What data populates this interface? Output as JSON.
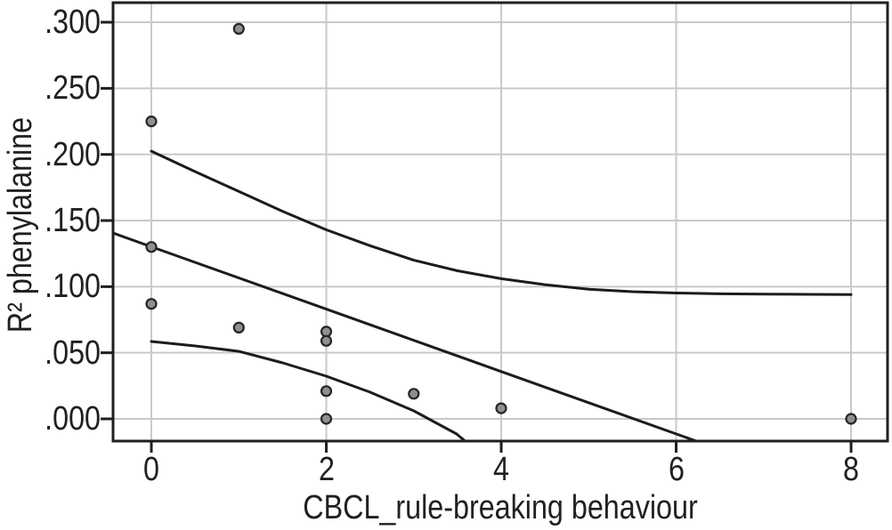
{
  "figure": {
    "background": "#ffffff"
  },
  "chart_data": {
    "type": "scatter",
    "title": "",
    "xlabel": "CBCL_rule-breaking behaviour",
    "ylabel": "R² phenylalanine",
    "xlim": [
      -0.438,
      8.417
    ],
    "ylim": [
      -0.0168,
      0.3148
    ],
    "grid": true,
    "legend": "none",
    "x_ticks": {
      "values": [
        0,
        2,
        4,
        6,
        8
      ],
      "labels": [
        "0",
        "2",
        "4",
        "6",
        "8"
      ]
    },
    "y_ticks": {
      "values": [
        0.0,
        0.05,
        0.1,
        0.15,
        0.2,
        0.25,
        0.3
      ],
      "labels": [
        ".000",
        ".050",
        ".100",
        ".150",
        ".200",
        ".250",
        ".300"
      ]
    },
    "scatter_points": [
      [
        0,
        0.225
      ],
      [
        0,
        0.13
      ],
      [
        0,
        0.087
      ],
      [
        1,
        0.295
      ],
      [
        1,
        0.069
      ],
      [
        2,
        0.066
      ],
      [
        2,
        0.059
      ],
      [
        2,
        0.021
      ],
      [
        2,
        0.0
      ],
      [
        3,
        0.019
      ],
      [
        4,
        0.008
      ],
      [
        8,
        0.0
      ]
    ],
    "series": [
      {
        "name": "upper-confidence-band",
        "points": [
          [
            0,
            0.2025
          ],
          [
            0.5,
            0.187
          ],
          [
            1,
            0.172
          ],
          [
            1.5,
            0.157
          ],
          [
            2,
            0.143
          ],
          [
            2.5,
            0.131
          ],
          [
            3,
            0.12
          ],
          [
            3.5,
            0.112
          ],
          [
            4,
            0.106
          ],
          [
            4.5,
            0.1015
          ],
          [
            5,
            0.098
          ],
          [
            5.5,
            0.0962
          ],
          [
            6,
            0.0952
          ],
          [
            6.5,
            0.0946
          ],
          [
            7,
            0.0943
          ],
          [
            7.5,
            0.0942
          ],
          [
            8,
            0.094
          ]
        ]
      },
      {
        "name": "fit-line",
        "points": [
          [
            -0.438,
            0.1406
          ],
          [
            0,
            0.1302
          ],
          [
            2,
            0.083
          ],
          [
            4,
            0.0358
          ],
          [
            6.23,
            -0.0168
          ]
        ]
      },
      {
        "name": "lower-confidence-band",
        "points": [
          [
            0,
            0.0585
          ],
          [
            0.5,
            0.0552
          ],
          [
            1,
            0.0511
          ],
          [
            1.5,
            0.0424
          ],
          [
            2,
            0.0323
          ],
          [
            2.5,
            0.0202
          ],
          [
            3,
            0.0061
          ],
          [
            3.49,
            -0.0114
          ],
          [
            3.6,
            -0.0175
          ]
        ]
      }
    ],
    "colors": {
      "axis": "#1f1f1f",
      "grid": "#c9c9c9",
      "line": "#1c1c1c",
      "marker_fill": "#8f8f8f",
      "marker_stroke": "#262626",
      "text": "#231f20",
      "background": "#ffffff"
    }
  }
}
